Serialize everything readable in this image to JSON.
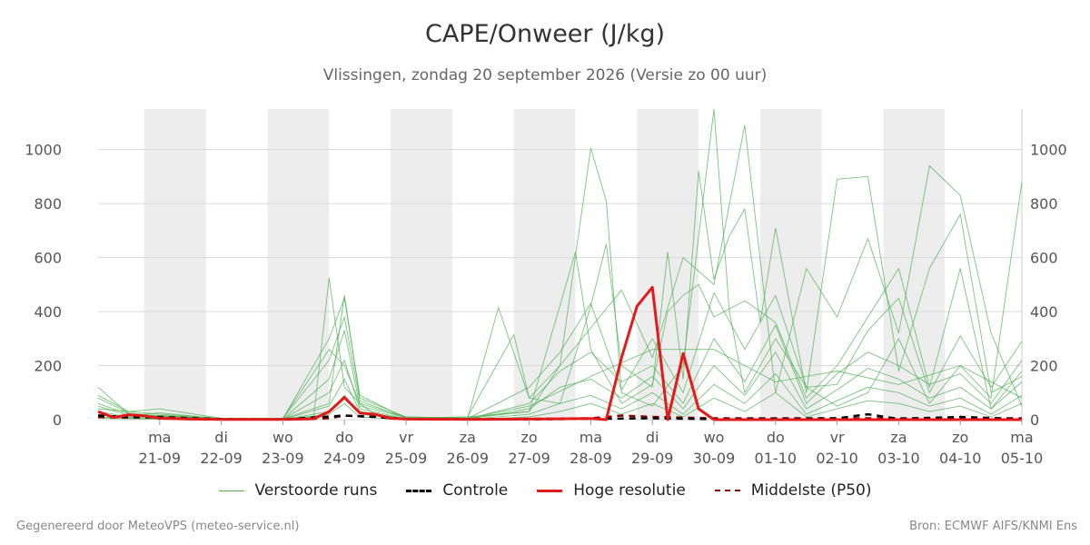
{
  "header": {
    "title": "CAPE/Onweer (J/kg)",
    "subtitle": "Vlissingen, zondag 20 september 2026 (Versie zo 00 uur)"
  },
  "footer": {
    "left": "Gegenereerd door MeteoVPS (meteo-service.nl)",
    "right": "Bron: ECMWF AIFS/KNMI Ens"
  },
  "legend": [
    {
      "label": "Verstoorde runs",
      "color": "#4caf50",
      "style": "thin"
    },
    {
      "label": "Controle",
      "color": "#000000",
      "style": "dashed"
    },
    {
      "label": "Hoge resolutie",
      "color": "#e31a1c",
      "style": "solid"
    },
    {
      "label": "Middelste (P50)",
      "color": "#8b0000",
      "style": "dashed"
    }
  ],
  "chart_data": {
    "type": "line",
    "x_unit": "days since 2026-09-20 00:00",
    "xlim": [
      0,
      15
    ],
    "ylim": [
      0,
      1150
    ],
    "y_ticks": [
      0,
      200,
      400,
      600,
      800,
      1000
    ],
    "grid": true,
    "legend_position": "bottom",
    "day_labels": [
      {
        "x": 1,
        "weekday": "ma",
        "date": "21-09"
      },
      {
        "x": 2,
        "weekday": "di",
        "date": "22-09"
      },
      {
        "x": 3,
        "weekday": "wo",
        "date": "23-09"
      },
      {
        "x": 4,
        "weekday": "do",
        "date": "24-09"
      },
      {
        "x": 5,
        "weekday": "vr",
        "date": "25-09"
      },
      {
        "x": 6,
        "weekday": "za",
        "date": "26-09"
      },
      {
        "x": 7,
        "weekday": "zo",
        "date": "27-09"
      },
      {
        "x": 8,
        "weekday": "ma",
        "date": "28-09"
      },
      {
        "x": 9,
        "weekday": "di",
        "date": "29-09"
      },
      {
        "x": 10,
        "weekday": "wo",
        "date": "30-09"
      },
      {
        "x": 11,
        "weekday": "do",
        "date": "01-10"
      },
      {
        "x": 12,
        "weekday": "vr",
        "date": "02-10"
      },
      {
        "x": 13,
        "weekday": "za",
        "date": "03-10"
      },
      {
        "x": 14,
        "weekday": "zo",
        "date": "04-10"
      },
      {
        "x": 15,
        "weekday": "ma",
        "date": "05-10"
      }
    ],
    "shaded_bands": [
      [
        0.75,
        1.75
      ],
      [
        2.75,
        3.75
      ],
      [
        4.75,
        5.75
      ],
      [
        6.75,
        7.75
      ],
      [
        8.75,
        9.75
      ],
      [
        10.75,
        11.75
      ],
      [
        12.75,
        13.75
      ]
    ],
    "series": [
      {
        "name": "Hoge resolutie",
        "color": "#e31a1c",
        "style": "solid",
        "x": [
          0,
          0.25,
          0.5,
          0.75,
          1,
          1.5,
          2,
          3,
          3.5,
          3.75,
          4,
          4.25,
          4.5,
          4.75,
          5,
          6,
          7,
          7.5,
          8,
          8.25,
          8.5,
          8.75,
          9,
          9.25,
          9.5,
          9.75,
          10,
          11,
          12,
          13,
          14,
          15
        ],
        "y": [
          30,
          8,
          18,
          14,
          5,
          2,
          1,
          1,
          3,
          30,
          82,
          25,
          20,
          5,
          2,
          1,
          2,
          3,
          4,
          0,
          230,
          420,
          490,
          0,
          245,
          40,
          0,
          0,
          0,
          0,
          0,
          0
        ]
      },
      {
        "name": "Controle",
        "color": "#000000",
        "style": "dashed",
        "x": [
          0,
          0.5,
          1,
          2,
          3,
          4,
          4.5,
          5,
          7,
          8,
          9,
          10,
          11,
          12,
          12.5,
          13,
          14,
          15
        ],
        "y": [
          15,
          10,
          8,
          2,
          1,
          15,
          10,
          2,
          1,
          3,
          5,
          2,
          3,
          5,
          20,
          3,
          10,
          2
        ]
      },
      {
        "name": "Middelste (P50)",
        "color": "#8b0000",
        "style": "dashed",
        "x": [
          0,
          0.5,
          1,
          2,
          3,
          3.75,
          4,
          4.5,
          5,
          6,
          7,
          8,
          8.5,
          9,
          10,
          11,
          12,
          13,
          14,
          15
        ],
        "y": [
          10,
          8,
          10,
          1,
          1,
          5,
          15,
          10,
          2,
          1,
          3,
          5,
          15,
          10,
          5,
          5,
          5,
          5,
          5,
          5
        ]
      },
      {
        "name": "Verstoorde runs",
        "color": "#4caf50",
        "style": "thin",
        "members": [
          {
            "x": [
              0,
              0.5,
              1,
              2,
              3,
              3.5,
              3.75,
              4,
              4.25,
              4.5,
              5,
              6,
              7,
              7.5,
              8,
              8.25,
              8.5,
              9,
              9.5,
              10,
              10.25,
              10.5,
              11,
              11.5,
              12,
              12.5,
              13,
              13.5,
              14,
              14.5,
              15
            ],
            "y": [
              60,
              20,
              10,
              2,
              3,
              10,
              525,
              120,
              60,
              20,
              5,
              10,
              30,
              200,
              1005,
              810,
              100,
              50,
              200,
              1150,
              400,
              100,
              300,
              120,
              50,
              100,
              300,
              60,
              200,
              80,
              880
            ]
          },
          {
            "x": [
              0,
              0.5,
              1,
              2,
              3,
              3.75,
              4,
              4.25,
              5,
              6,
              6.5,
              7,
              7.5,
              8,
              8.25,
              8.5,
              9,
              9.25,
              9.5,
              9.75,
              10,
              10.25,
              10.5,
              10.75,
              11,
              11.5,
              12,
              12.5,
              13,
              13.5,
              14,
              14.5,
              15
            ],
            "y": [
              40,
              30,
              20,
              5,
              3,
              60,
              460,
              80,
              10,
              5,
              415,
              80,
              60,
              420,
              650,
              200,
              120,
              620,
              150,
              920,
              520,
              680,
              780,
              360,
              710,
              100,
              890,
              900,
              180,
              560,
              760,
              100,
              160
            ]
          },
          {
            "x": [
              0,
              0.5,
              1,
              2,
              3,
              3.75,
              4,
              4.25,
              5,
              6,
              6.75,
              7,
              7.5,
              8,
              8.5,
              9,
              9.5,
              10,
              10.5,
              11,
              11.5,
              12,
              12.5,
              13,
              13.5,
              14,
              14.5,
              15
            ],
            "y": [
              120,
              20,
              15,
              5,
              3,
              300,
              450,
              90,
              5,
              10,
              315,
              80,
              200,
              340,
              480,
              230,
              600,
              500,
              1090,
              100,
              560,
              380,
              670,
              320,
              940,
              830,
              320,
              50
            ]
          },
          {
            "x": [
              0,
              0.5,
              1,
              2,
              3,
              3.75,
              4,
              4.25,
              5,
              6,
              7,
              7.75,
              8,
              8.5,
              9,
              9.25,
              9.5,
              9.75,
              10,
              10.5,
              11,
              11.5,
              12,
              12.5,
              13,
              13.5,
              14,
              14.5,
              15
            ],
            "y": [
              50,
              15,
              25,
              3,
              5,
              220,
              380,
              70,
              5,
              5,
              30,
              620,
              260,
              60,
              130,
              400,
              460,
              500,
              380,
              440,
              360,
              80,
              200,
              380,
              560,
              120,
              560,
              40,
              180
            ]
          },
          {
            "x": [
              0,
              0.5,
              1,
              2,
              3,
              3.75,
              4,
              4.25,
              5,
              6,
              7,
              7.5,
              8,
              8.5,
              9,
              9.5,
              10,
              10.5,
              11,
              11.5,
              12,
              12.5,
              13,
              13.5,
              14,
              14.5,
              15
            ],
            "y": [
              80,
              25,
              12,
              2,
              2,
              150,
              330,
              50,
              8,
              4,
              120,
              250,
              430,
              110,
              300,
              100,
              470,
              260,
              460,
              120,
              130,
              330,
              450,
              100,
              310,
              120,
              290
            ]
          },
          {
            "x": [
              0,
              0.5,
              1,
              2,
              3,
              3.75,
              4,
              4.25,
              5,
              6,
              7,
              7.5,
              8,
              8.5,
              9,
              9.5,
              10,
              10.5,
              11,
              11.5,
              12,
              12.5,
              13,
              13.5,
              14,
              14.5,
              15
            ],
            "y": [
              30,
              10,
              15,
              1,
              2,
              100,
              220,
              40,
              3,
              3,
              60,
              180,
              250,
              140,
              200,
              60,
              300,
              140,
              350,
              60,
              170,
              250,
              200,
              130,
              170,
              60,
              220
            ]
          },
          {
            "x": [
              0,
              0.5,
              1,
              2,
              3,
              3.75,
              4,
              4.25,
              5,
              6,
              7,
              7.5,
              8,
              8.5,
              9,
              9.5,
              10,
              10.5,
              11,
              11.5,
              12,
              12.5,
              13,
              13.5,
              14,
              14.5,
              15
            ],
            "y": [
              20,
              8,
              10,
              1,
              1,
              50,
              150,
              30,
              2,
              2,
              40,
              120,
              150,
              80,
              160,
              40,
              200,
              90,
              250,
              40,
              110,
              190,
              150,
              80,
              120,
              40,
              140
            ]
          },
          {
            "x": [
              0,
              0.5,
              1,
              2,
              3,
              3.75,
              4,
              4.25,
              5,
              6,
              7,
              7.5,
              8,
              8.5,
              9,
              9.5,
              10,
              10.5,
              11,
              11.5,
              12,
              12.5,
              13,
              13.5,
              14,
              14.5,
              15
            ],
            "y": [
              10,
              5,
              5,
              0,
              0,
              30,
              90,
              20,
              1,
              1,
              20,
              60,
              90,
              40,
              100,
              20,
              130,
              60,
              170,
              20,
              70,
              120,
              100,
              50,
              80,
              20,
              90
            ]
          },
          {
            "x": [
              0,
              0.5,
              1,
              2,
              3,
              3.75,
              4,
              4.25,
              5,
              6,
              7,
              7.5,
              8,
              8.5,
              9,
              9.5,
              10,
              10.5,
              11,
              11.5,
              12,
              12.5,
              13,
              13.5,
              14,
              14.5,
              15
            ],
            "y": [
              5,
              3,
              2,
              0,
              0,
              20,
              60,
              10,
              0,
              0,
              10,
              30,
              60,
              20,
              60,
              10,
              80,
              30,
              100,
              10,
              40,
              70,
              60,
              30,
              50,
              10,
              60
            ]
          },
          {
            "x": [
              0,
              0.5,
              1,
              2,
              3,
              3.75,
              4,
              4.25,
              5,
              6,
              7,
              8,
              9,
              10,
              11,
              12,
              13,
              14,
              15
            ],
            "y": [
              90,
              30,
              40,
              5,
              5,
              260,
              200,
              60,
              10,
              5,
              50,
              160,
              260,
              260,
              140,
              180,
              130,
              200,
              80
            ]
          }
        ]
      }
    ]
  }
}
